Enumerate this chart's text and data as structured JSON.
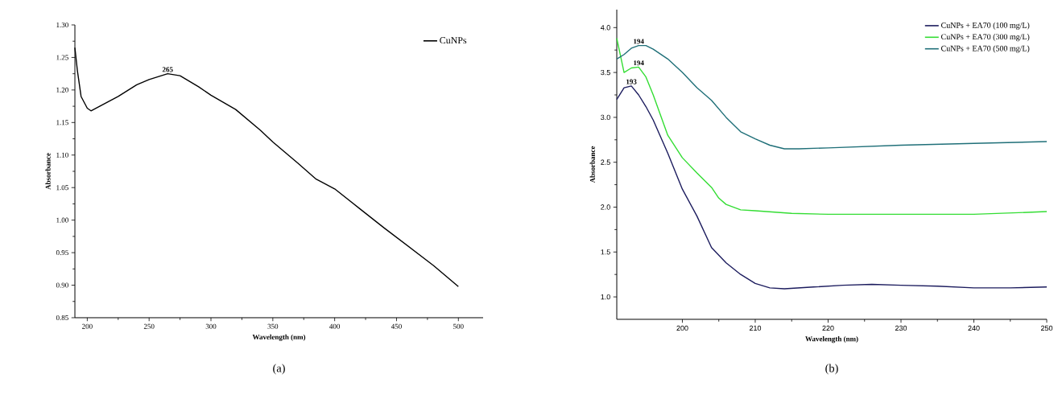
{
  "chart_data": [
    {
      "type": "line",
      "xlabel": "Wavelength (nm)",
      "ylabel": "Absorbance",
      "xlim": [
        190,
        520
      ],
      "ylim": [
        0.85,
        1.3
      ],
      "xticks": [
        200,
        250,
        300,
        350,
        400,
        450,
        500
      ],
      "yticks": [
        0.85,
        {
          "value": 0.9,
          "label": "0.90"
        },
        0.95,
        {
          "value": 1.0,
          "label": "1.00"
        },
        1.05,
        {
          "value": 1.1,
          "label": "1.10"
        },
        1.15,
        {
          "value": 1.2,
          "label": "1.20"
        },
        1.25,
        {
          "value": 1.3,
          "label": "1.30"
        }
      ],
      "legend": "top right",
      "grid": false,
      "series": [
        {
          "name": "CuNPs",
          "color": "#000000",
          "x": [
            190,
            192,
            195,
            200,
            203,
            210,
            225,
            240,
            250,
            265,
            275,
            290,
            300,
            320,
            340,
            350,
            370,
            385,
            400,
            420,
            440,
            460,
            480,
            500
          ],
          "values": [
            1.265,
            1.23,
            1.19,
            1.172,
            1.168,
            1.175,
            1.19,
            1.208,
            1.216,
            1.225,
            1.222,
            1.205,
            1.192,
            1.17,
            1.138,
            1.12,
            1.088,
            1.063,
            1.048,
            1.018,
            0.988,
            0.959,
            0.93,
            0.898
          ]
        }
      ],
      "annotations": [
        {
          "text": "265",
          "x": 265,
          "y": 1.225
        },
        "(a)"
      ]
    },
    {
      "type": "line",
      "xlabel": "Wavelength (nm)",
      "ylabel": "Absorbance",
      "xlim": [
        191,
        250
      ],
      "ylim": [
        0.75,
        4.2
      ],
      "xticks": [
        200,
        210,
        220,
        230,
        240,
        250
      ],
      "yticks": [
        {
          "value": 1,
          "label": "1.0"
        },
        1.5,
        {
          "value": 2,
          "label": "2.0"
        },
        2.5,
        {
          "value": 3,
          "label": "3.0"
        },
        3.5,
        {
          "value": 4,
          "label": "4.0"
        }
      ],
      "legend": "top right",
      "grid": false,
      "series": [
        {
          "name": "CuNPs + EA70 (100 mg/L)",
          "color": "#1c1c5e",
          "x": [
            191,
            192,
            193,
            194,
            195,
            196,
            198,
            200,
            202,
            204,
            206,
            208,
            210,
            212,
            214,
            218,
            222,
            226,
            230,
            235,
            240,
            245,
            250
          ],
          "values": [
            3.2,
            3.33,
            3.35,
            3.25,
            3.12,
            2.97,
            2.6,
            2.2,
            1.9,
            1.55,
            1.38,
            1.25,
            1.15,
            1.1,
            1.09,
            1.11,
            1.13,
            1.14,
            1.13,
            1.12,
            1.1,
            1.1,
            1.11
          ]
        },
        {
          "name": "CuNPs + EA70 (300 mg/L)",
          "color": "#33dd33",
          "x": [
            191,
            192,
            193,
            194,
            195,
            196,
            198,
            200,
            202,
            204,
            205,
            206,
            208,
            210,
            215,
            220,
            230,
            240,
            250
          ],
          "values": [
            3.88,
            3.5,
            3.55,
            3.56,
            3.45,
            3.25,
            2.8,
            2.55,
            2.38,
            2.22,
            2.1,
            2.03,
            1.97,
            1.96,
            1.93,
            1.92,
            1.92,
            1.92,
            1.95
          ]
        },
        {
          "name": "CuNPs + EA70 (500 mg/L)",
          "color": "#1f6f78",
          "x": [
            191,
            192,
            193,
            194,
            195,
            196,
            198,
            200,
            202,
            204,
            206,
            208,
            210,
            212,
            214,
            216,
            220,
            230,
            240,
            250
          ],
          "values": [
            3.65,
            3.7,
            3.77,
            3.8,
            3.8,
            3.76,
            3.65,
            3.5,
            3.33,
            3.19,
            3.0,
            2.84,
            2.76,
            2.69,
            2.65,
            2.65,
            2.66,
            2.69,
            2.71,
            2.73
          ]
        }
      ],
      "annotations": [
        {
          "text": "193",
          "x": 193,
          "y": 3.35
        },
        {
          "text": "194",
          "x": 194,
          "y": 3.56
        },
        {
          "text": "194",
          "x": 194,
          "y": 3.8
        },
        "(b)"
      ]
    }
  ]
}
